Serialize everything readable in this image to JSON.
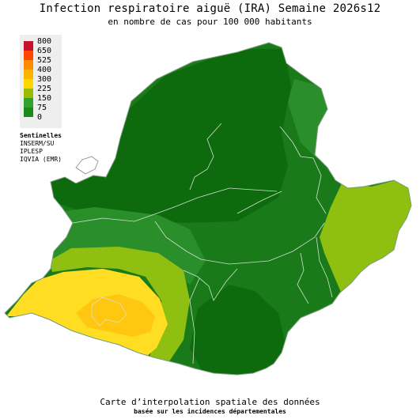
{
  "title": "Infection respiratoire aiguë (IRA) Semaine 2026s12",
  "subtitle": "en nombre de cas pour 100 000 habitants",
  "legend": {
    "items": [
      {
        "label": "800",
        "color": "#c8102e"
      },
      {
        "label": "650",
        "color": "#ff4500"
      },
      {
        "label": "525",
        "color": "#ff8c00"
      },
      {
        "label": "400",
        "color": "#ffb300"
      },
      {
        "label": "300",
        "color": "#ffd700"
      },
      {
        "label": "225",
        "color": "#99bb00"
      },
      {
        "label": "150",
        "color": "#33a02c"
      },
      {
        "label": "75",
        "color": "#1a8a1a"
      },
      {
        "label": "0",
        "color": "#006400"
      }
    ]
  },
  "sources": {
    "heading": "Sentinelles",
    "lines": [
      "INSERM/SU",
      "IPLESP",
      "IQVIA (EMR)"
    ]
  },
  "footer": {
    "line1": "Carte d’interpolation spatiale des données",
    "line2": "basée sur les incidences départementales"
  }
}
